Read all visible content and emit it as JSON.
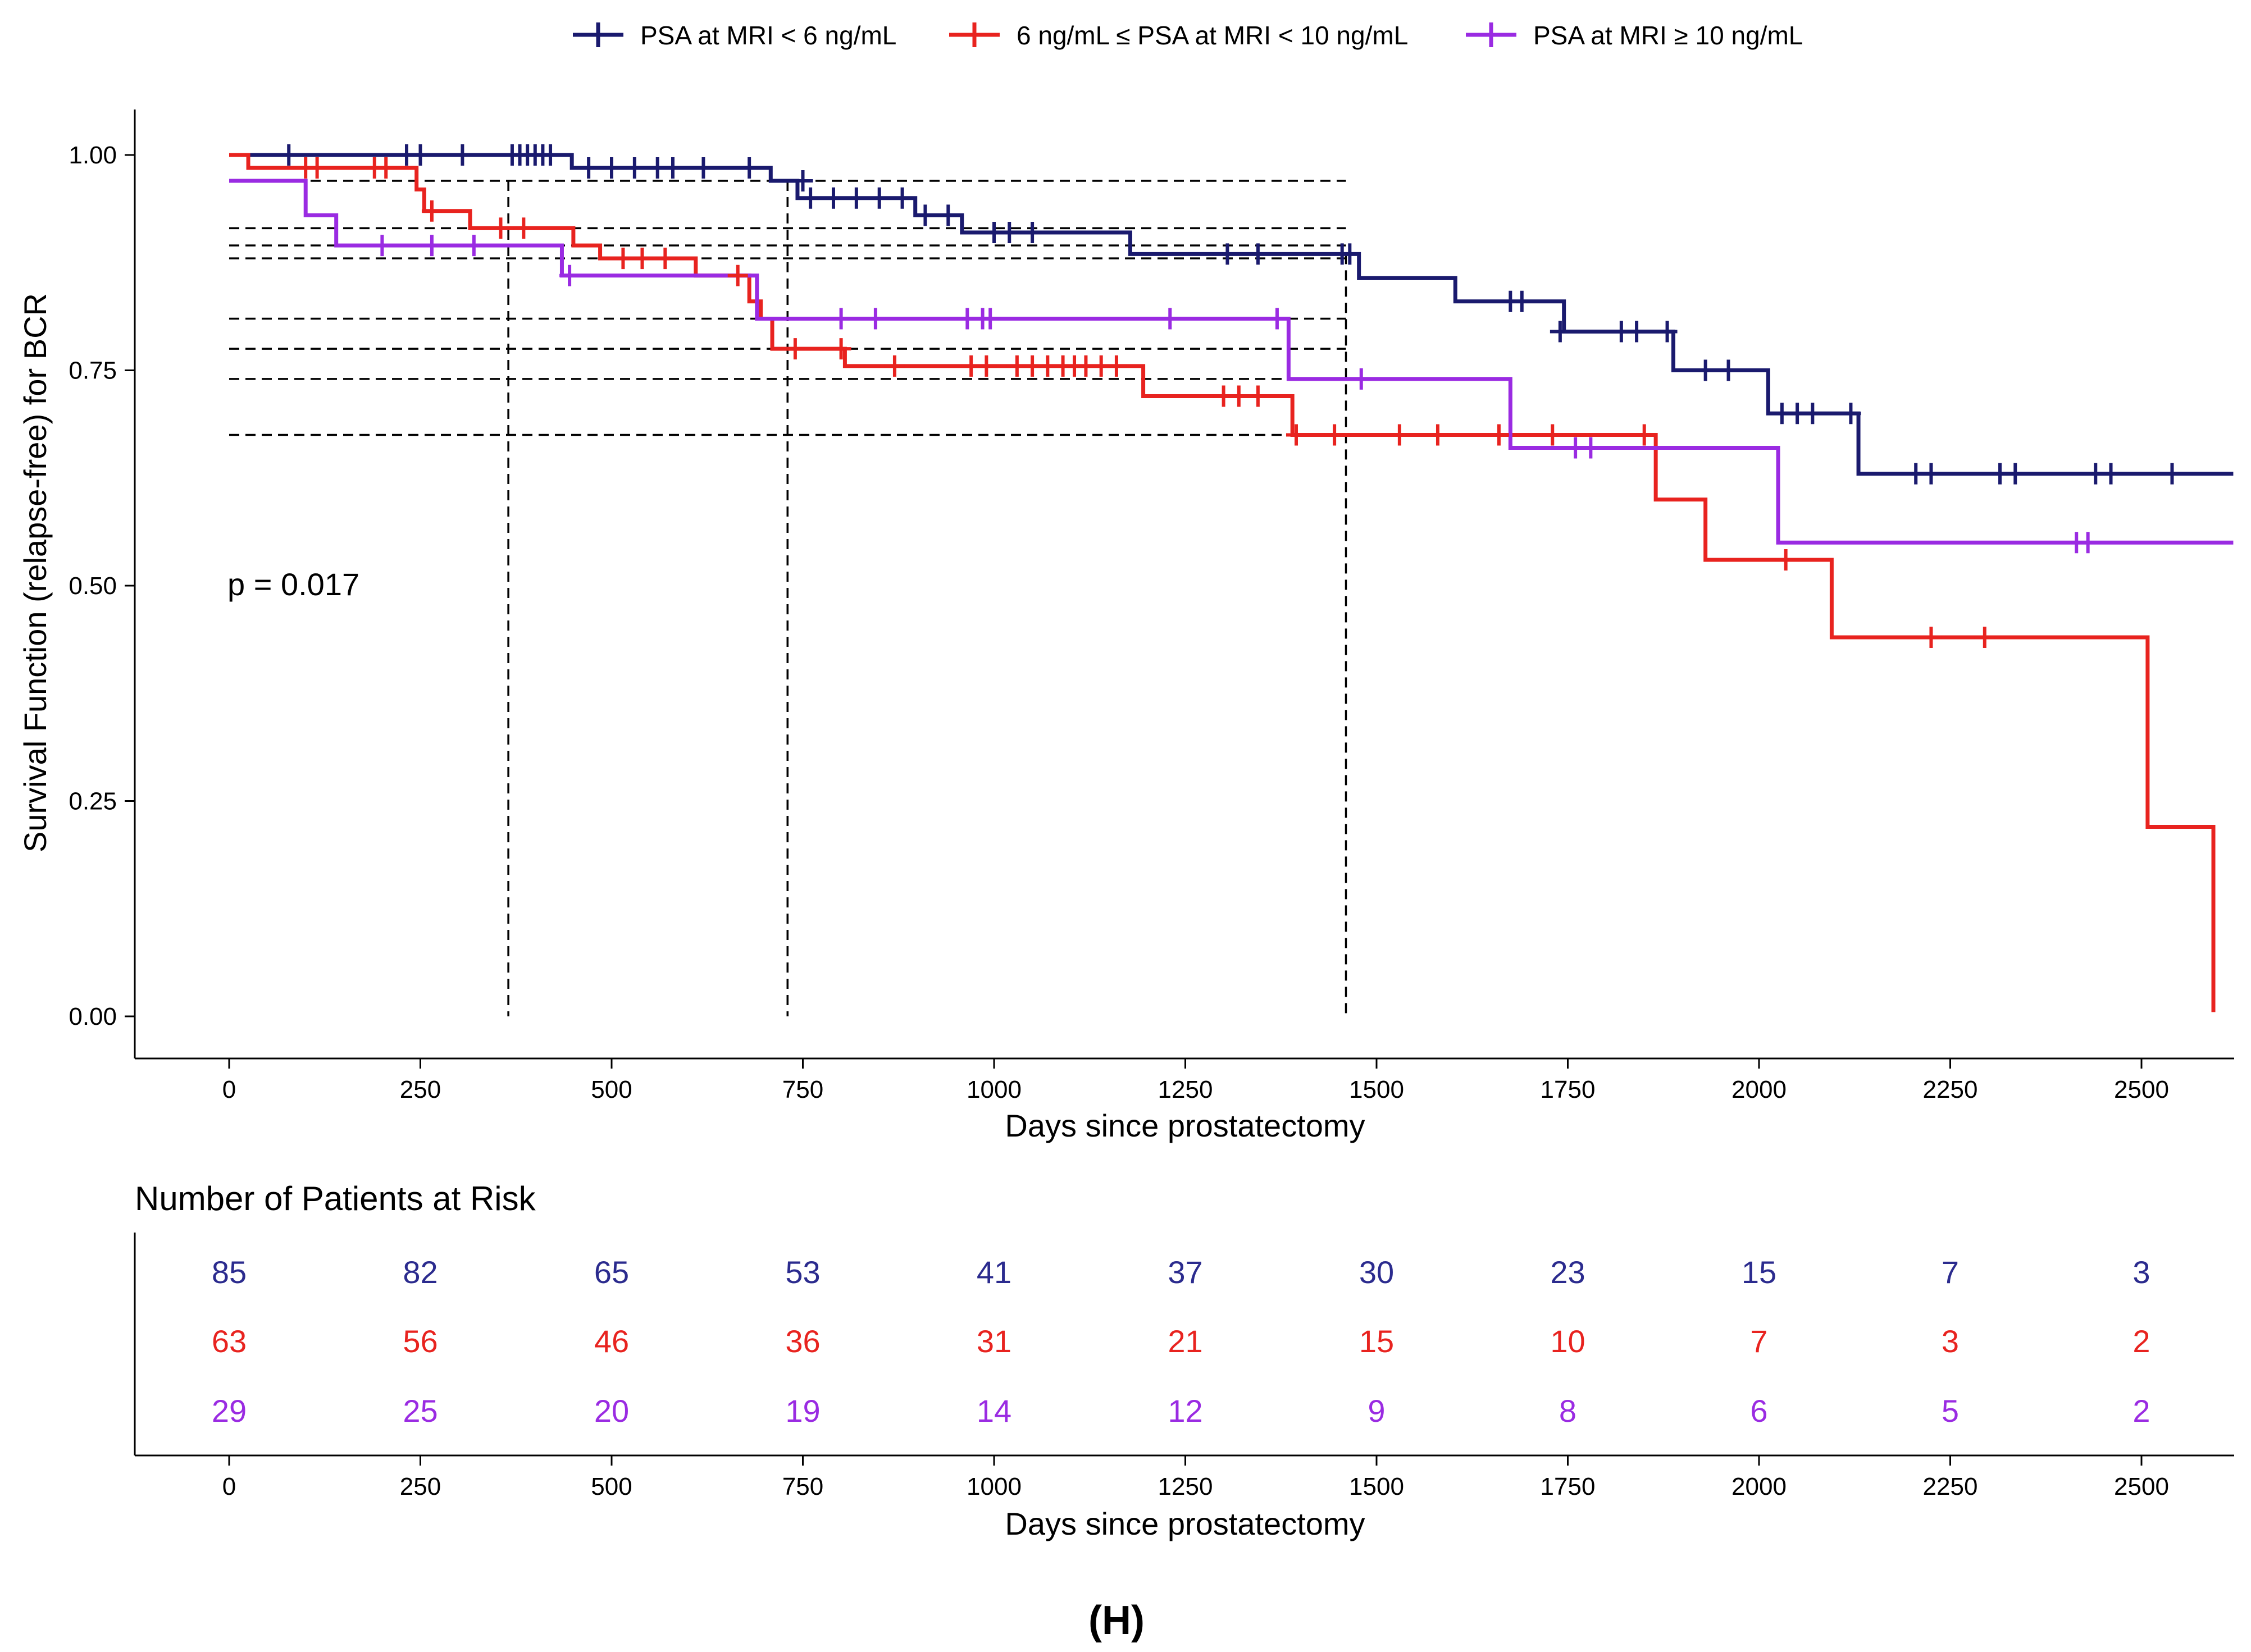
{
  "chart_data": {
    "type": "line",
    "subtype": "kaplan-meier",
    "legend": {
      "placement": "top-center",
      "entries": [
        {
          "name": "PSA at MRI < 6 ng/mL",
          "color": "#1a1a6e"
        },
        {
          "name": "6 ng/mL ≤ PSA at MRI < 10 ng/mL",
          "color": "#e8231f"
        },
        {
          "name": "PSA at MRI ≥ 10 ng/mL",
          "color": "#9a2be2"
        }
      ]
    },
    "xlabel": "Days since prostatectomy",
    "ylabel": "Survival Function (relapse-free) for BCR",
    "xlim": [
      0,
      2620
    ],
    "ylim": [
      -0.05,
      1.05
    ],
    "xticks": [
      0,
      250,
      500,
      750,
      1000,
      1250,
      1500,
      1750,
      2000,
      2250,
      2500
    ],
    "xtick_labels": [
      "0",
      "250",
      "500",
      "750",
      "1000",
      "1250",
      "1500",
      "1750",
      "2000",
      "2250",
      "2500"
    ],
    "yticks": [
      0,
      0.25,
      0.5,
      0.75,
      1.0
    ],
    "ytick_labels": [
      "0.00",
      "0.25",
      "0.50",
      "0.75",
      "1.00"
    ],
    "grid": false,
    "annotation": "p = 0.017",
    "reference_lines": {
      "vertical_days": [
        365,
        730,
        1460
      ],
      "horizontal_levels": [
        0.97,
        0.915,
        0.895,
        0.88,
        0.81,
        0.775,
        0.74,
        0.675
      ]
    },
    "series": [
      {
        "name": "PSA at MRI < 6 ng/mL",
        "color": "#1a1a6e",
        "steps": [
          [
            0,
            1.0
          ],
          [
            448,
            0.985
          ],
          [
            708,
            0.97
          ],
          [
            743,
            0.95
          ],
          [
            897,
            0.93
          ],
          [
            958,
            0.91
          ],
          [
            1178,
            0.885
          ],
          [
            1477,
            0.857
          ],
          [
            1603,
            0.83
          ],
          [
            1745,
            0.795
          ],
          [
            1888,
            0.75
          ],
          [
            2012,
            0.7
          ],
          [
            2130,
            0.63
          ],
          [
            2620,
            0.63
          ]
        ],
        "censored": [
          [
            78,
            1.0
          ],
          [
            232,
            1.0
          ],
          [
            250,
            1.0
          ],
          [
            305,
            1.0
          ],
          [
            370,
            1.0
          ],
          [
            380,
            1.0
          ],
          [
            390,
            1.0
          ],
          [
            400,
            1.0
          ],
          [
            410,
            1.0
          ],
          [
            420,
            1.0
          ],
          [
            470,
            0.985
          ],
          [
            500,
            0.985
          ],
          [
            530,
            0.985
          ],
          [
            560,
            0.985
          ],
          [
            580,
            0.985
          ],
          [
            620,
            0.985
          ],
          [
            680,
            0.985
          ],
          [
            750,
            0.97
          ],
          [
            760,
            0.95
          ],
          [
            790,
            0.95
          ],
          [
            820,
            0.95
          ],
          [
            850,
            0.95
          ],
          [
            880,
            0.95
          ],
          [
            910,
            0.93
          ],
          [
            940,
            0.93
          ],
          [
            1000,
            0.91
          ],
          [
            1020,
            0.91
          ],
          [
            1050,
            0.91
          ],
          [
            1305,
            0.885
          ],
          [
            1345,
            0.885
          ],
          [
            1455,
            0.885
          ],
          [
            1465,
            0.885
          ],
          [
            1675,
            0.83
          ],
          [
            1690,
            0.83
          ],
          [
            1740,
            0.795
          ],
          [
            1820,
            0.795
          ],
          [
            1840,
            0.795
          ],
          [
            1880,
            0.795
          ],
          [
            1930,
            0.75
          ],
          [
            1960,
            0.75
          ],
          [
            2030,
            0.7
          ],
          [
            2050,
            0.7
          ],
          [
            2070,
            0.7
          ],
          [
            2120,
            0.7
          ],
          [
            2205,
            0.63
          ],
          [
            2225,
            0.63
          ],
          [
            2315,
            0.63
          ],
          [
            2335,
            0.63
          ],
          [
            2440,
            0.63
          ],
          [
            2460,
            0.63
          ],
          [
            2540,
            0.63
          ]
        ]
      },
      {
        "name": "6 ng/mL ≤ PSA at MRI < 10 ng/mL",
        "color": "#e8231f",
        "steps": [
          [
            0,
            1.0
          ],
          [
            25,
            0.985
          ],
          [
            245,
            0.96
          ],
          [
            255,
            0.935
          ],
          [
            315,
            0.915
          ],
          [
            450,
            0.895
          ],
          [
            485,
            0.88
          ],
          [
            610,
            0.86
          ],
          [
            680,
            0.83
          ],
          [
            695,
            0.81
          ],
          [
            710,
            0.775
          ],
          [
            805,
            0.755
          ],
          [
            1195,
            0.72
          ],
          [
            1390,
            0.675
          ],
          [
            1865,
            0.6
          ],
          [
            1930,
            0.53
          ],
          [
            2095,
            0.44
          ],
          [
            2508,
            0.22
          ],
          [
            2594,
            0.005
          ]
        ],
        "censored": [
          [
            100,
            0.985
          ],
          [
            115,
            0.985
          ],
          [
            190,
            0.985
          ],
          [
            205,
            0.985
          ],
          [
            265,
            0.935
          ],
          [
            355,
            0.915
          ],
          [
            385,
            0.915
          ],
          [
            515,
            0.88
          ],
          [
            540,
            0.88
          ],
          [
            570,
            0.88
          ],
          [
            665,
            0.86
          ],
          [
            740,
            0.775
          ],
          [
            800,
            0.775
          ],
          [
            870,
            0.755
          ],
          [
            970,
            0.755
          ],
          [
            990,
            0.755
          ],
          [
            1030,
            0.755
          ],
          [
            1050,
            0.755
          ],
          [
            1070,
            0.755
          ],
          [
            1090,
            0.755
          ],
          [
            1105,
            0.755
          ],
          [
            1120,
            0.755
          ],
          [
            1140,
            0.755
          ],
          [
            1160,
            0.755
          ],
          [
            1300,
            0.72
          ],
          [
            1320,
            0.72
          ],
          [
            1345,
            0.72
          ],
          [
            1395,
            0.675
          ],
          [
            1445,
            0.675
          ],
          [
            1530,
            0.675
          ],
          [
            1580,
            0.675
          ],
          [
            1660,
            0.675
          ],
          [
            1730,
            0.675
          ],
          [
            1850,
            0.675
          ],
          [
            2035,
            0.53
          ],
          [
            2225,
            0.44
          ],
          [
            2295,
            0.44
          ]
        ]
      },
      {
        "name": "PSA at MRI ≥ 10 ng/mL",
        "color": "#9a2be2",
        "steps": [
          [
            0,
            0.97
          ],
          [
            100,
            0.93
          ],
          [
            140,
            0.895
          ],
          [
            435,
            0.86
          ],
          [
            690,
            0.81
          ],
          [
            1385,
            0.74
          ],
          [
            1675,
            0.66
          ],
          [
            2025,
            0.55
          ],
          [
            2620,
            0.55
          ]
        ],
        "censored": [
          [
            200,
            0.895
          ],
          [
            265,
            0.895
          ],
          [
            320,
            0.895
          ],
          [
            445,
            0.86
          ],
          [
            800,
            0.81
          ],
          [
            845,
            0.81
          ],
          [
            965,
            0.81
          ],
          [
            985,
            0.81
          ],
          [
            995,
            0.81
          ],
          [
            1230,
            0.81
          ],
          [
            1370,
            0.81
          ],
          [
            1480,
            0.74
          ],
          [
            1760,
            0.66
          ],
          [
            1780,
            0.66
          ],
          [
            2415,
            0.55
          ],
          [
            2430,
            0.55
          ]
        ]
      }
    ],
    "risk_table": {
      "title": "Number of Patients at Risk",
      "xlabel": "Days since prostatectomy",
      "times": [
        0,
        250,
        500,
        750,
        1000,
        1250,
        1500,
        1750,
        2000,
        2250,
        2500
      ],
      "rows": [
        {
          "name": "PSA at MRI < 6 ng/mL",
          "color": "#2b2b8e",
          "values": [
            "85",
            "82",
            "65",
            "53",
            "41",
            "37",
            "30",
            "23",
            "15",
            "7",
            "3"
          ]
        },
        {
          "name": "6 ng/mL ≤ PSA at MRI < 10 ng/mL",
          "color": "#e8231f",
          "values": [
            "63",
            "56",
            "46",
            "36",
            "31",
            "21",
            "15",
            "10",
            "7",
            "3",
            "2"
          ]
        },
        {
          "name": "PSA at MRI ≥ 10 ng/mL",
          "color": "#9a2be2",
          "values": [
            "29",
            "25",
            "20",
            "19",
            "14",
            "12",
            "9",
            "8",
            "6",
            "5",
            "2"
          ]
        }
      ]
    },
    "caption": "(H)"
  }
}
